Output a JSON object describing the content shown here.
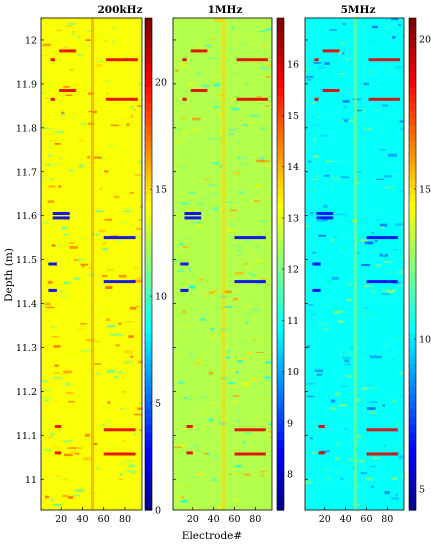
{
  "chart_data": {
    "type": "heatmap",
    "xlabel": "Electrode#",
    "ylabel": "Depth (m)",
    "ylim": [
      12.05,
      10.93
    ],
    "yticks": [
      11,
      11.1,
      11.2,
      11.3,
      11.4,
      11.5,
      11.6,
      11.7,
      11.8,
      11.9,
      12
    ],
    "ytick_labels": [
      "11",
      "11.1",
      "11.2",
      "11.3",
      "11.4",
      "11.5",
      "11.6",
      "11.7",
      "11.8",
      "11.9",
      "12"
    ],
    "xlim": [
      1,
      96
    ],
    "xticks": [
      20,
      40,
      60,
      80
    ],
    "xtick_labels": [
      "20",
      "40",
      "60",
      "80"
    ],
    "colormap": "jet",
    "grid": false,
    "panels": [
      {
        "title": "200kHz",
        "clim": [
          0,
          23
        ],
        "colorbar_ticks": [
          0,
          5,
          10,
          15,
          20
        ],
        "colorbar_labels": [
          "0",
          "5",
          "10",
          "15",
          "20"
        ],
        "background_level": 0.62
      },
      {
        "title": "1MHz",
        "clim": [
          7.3,
          16.9
        ],
        "colorbar_ticks": [
          8,
          9,
          10,
          11,
          12,
          13,
          14,
          15,
          16
        ],
        "colorbar_labels": [
          "8",
          "9",
          "10",
          "11",
          "12",
          "13",
          "14",
          "15",
          "16"
        ],
        "background_level": 0.55
      },
      {
        "title": "5MHz",
        "clim": [
          4.3,
          20.7
        ],
        "colorbar_ticks": [
          5,
          10,
          15,
          20
        ],
        "colorbar_labels": [
          "5",
          "10",
          "15",
          "20"
        ],
        "background_level": 0.38
      }
    ],
    "features": [
      {
        "kind": "low",
        "x": [
          8,
          16
        ],
        "y": [
          11.4,
          11.52
        ]
      },
      {
        "kind": "low",
        "x": [
          12,
          28
        ],
        "y": [
          11.59,
          11.61
        ]
      },
      {
        "kind": "low",
        "x": [
          60,
          90
        ],
        "y": [
          11.4,
          11.6
        ]
      },
      {
        "kind": "high",
        "x": [
          14,
          20
        ],
        "y": [
          11.03,
          11.15
        ]
      },
      {
        "kind": "high",
        "x": [
          60,
          90
        ],
        "y": [
          11.03,
          11.14
        ]
      },
      {
        "kind": "high",
        "x": [
          10,
          14
        ],
        "y": [
          11.82,
          12.0
        ]
      },
      {
        "kind": "high",
        "x": [
          18,
          34
        ],
        "y": [
          11.84,
          12.02
        ]
      },
      {
        "kind": "high",
        "x": [
          62,
          92
        ],
        "y": [
          11.82,
          12.0
        ]
      }
    ]
  }
}
